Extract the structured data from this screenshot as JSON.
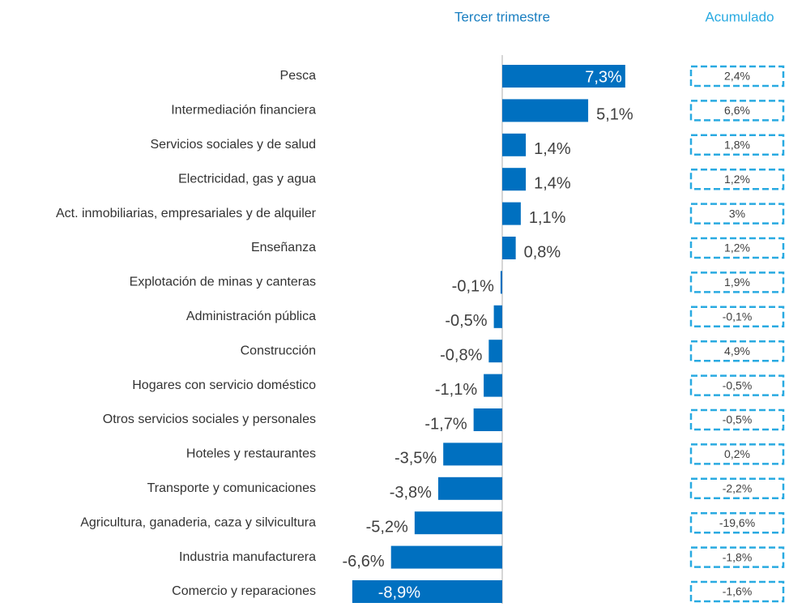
{
  "chart_data": {
    "type": "bar",
    "orientation": "horizontal",
    "categories": [
      "Pesca",
      "Intermediación financiera",
      "Servicios sociales y de salud",
      "Electricidad, gas y agua",
      "Act. inmobiliarias, empresariales y de alquiler",
      "Enseñanza",
      "Explotación de minas y canteras",
      "Administración pública",
      "Construcción",
      "Hogares con servicio doméstico",
      "Otros servicios sociales y personales",
      "Hoteles y restaurantes",
      "Transporte y comunicaciones",
      "Agricultura, ganaderia, caza y silvicultura",
      "Industria manufacturera",
      "Comercio  y reparaciones"
    ],
    "series": [
      {
        "name": "Tercer trimestre",
        "color": "#0070c0",
        "values": [
          7.3,
          5.1,
          1.4,
          1.4,
          1.1,
          0.8,
          -0.1,
          -0.5,
          -0.8,
          -1.1,
          -1.7,
          -3.5,
          -3.8,
          -5.2,
          -6.6,
          -8.9
        ],
        "value_labels": [
          "7,3%",
          "5,1%",
          "1,4%",
          "1,4%",
          "1,1%",
          "0,8%",
          "-0,1%",
          "-0,5%",
          "-0,8%",
          "-1,1%",
          "-1,7%",
          "-3,5%",
          "-3,8%",
          "-5,2%",
          "-6,6%",
          "-8,9%"
        ]
      },
      {
        "name": "Acumulado",
        "color": "#29aae1",
        "values": [
          2.4,
          6.6,
          1.8,
          1.2,
          3,
          1.2,
          1.9,
          -0.1,
          4.9,
          -0.5,
          -0.5,
          0.2,
          -2.2,
          -19.6,
          -1.8,
          -1.6
        ],
        "value_labels": [
          "2,4%",
          "6,6%",
          "1,8%",
          "1,2%",
          "3%",
          "1,2%",
          "1,9%",
          "-0,1%",
          "4,9%",
          "-0,5%",
          "-0,5%",
          "0,2%",
          "-2,2%",
          "-19,6%",
          "-1,8%",
          "-1,6%"
        ]
      }
    ],
    "xlim": [
      -9,
      8
    ]
  }
}
